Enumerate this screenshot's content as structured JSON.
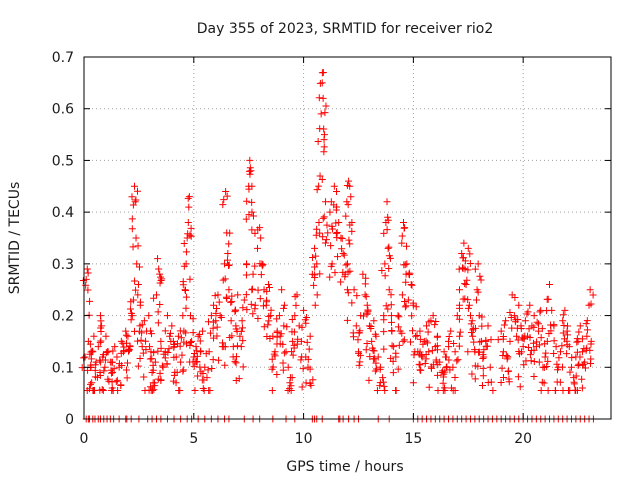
{
  "chart_data": {
    "type": "scatter",
    "title": "Day 355 of 2023, SRMTID for receiver rio2",
    "xlabel": "GPS time / hours",
    "ylabel": "SRMTID / TECUs",
    "xlim": [
      0,
      24
    ],
    "ylim": [
      0,
      0.7
    ],
    "xticks": [
      0,
      5,
      10,
      15,
      20
    ],
    "xtick_labels": [
      "0",
      "5",
      "10",
      "15",
      "20"
    ],
    "yticks": [
      0,
      0.1,
      0.2,
      0.3,
      0.4,
      0.5,
      0.6,
      0.7
    ],
    "ytick_labels": [
      "0",
      "0.1",
      "0.2",
      "0.3",
      "0.4",
      "0.5",
      "0.6",
      "0.7"
    ],
    "grid": true,
    "marker": "+",
    "marker_color": "#ff0000",
    "series": [
      {
        "name": "SRMTID",
        "points": [
          [
            0.05,
            0.12
          ],
          [
            0.1,
            0.27
          ],
          [
            0.15,
            0.29
          ],
          [
            0.2,
            0.15
          ],
          [
            0.3,
            0.1
          ],
          [
            0.35,
            0.07
          ],
          [
            0.4,
            0.13
          ],
          [
            0.45,
            0.16
          ],
          [
            0.55,
            0.11
          ],
          [
            0.65,
            0.14
          ],
          [
            0.75,
            0.2
          ],
          [
            0.8,
            0.18
          ],
          [
            0.85,
            0.12
          ],
          [
            0.95,
            0.1
          ],
          [
            1.0,
            0.16
          ],
          [
            1.1,
            0.13
          ],
          [
            1.2,
            0.11
          ],
          [
            1.3,
            0.09
          ],
          [
            1.4,
            0.14
          ],
          [
            1.5,
            0.12
          ],
          [
            1.6,
            0.1
          ],
          [
            1.7,
            0.15
          ],
          [
            1.8,
            0.13
          ],
          [
            1.9,
            0.17
          ],
          [
            2.0,
            0.16
          ],
          [
            2.1,
            0.14
          ],
          [
            2.2,
            0.2
          ],
          [
            2.25,
            0.23
          ],
          [
            2.3,
            0.45
          ],
          [
            2.33,
            0.42
          ],
          [
            2.37,
            0.35
          ],
          [
            2.4,
            0.3
          ],
          [
            2.45,
            0.24
          ],
          [
            2.55,
            0.18
          ],
          [
            2.65,
            0.14
          ],
          [
            2.75,
            0.19
          ],
          [
            2.85,
            0.17
          ],
          [
            2.95,
            0.2
          ],
          [
            3.05,
            0.13
          ],
          [
            3.1,
            0.09
          ],
          [
            3.15,
            0.07
          ],
          [
            3.25,
            0.11
          ],
          [
            3.3,
            0.24
          ],
          [
            3.35,
            0.31
          ],
          [
            3.4,
            0.29
          ],
          [
            3.5,
            0.15
          ],
          [
            3.6,
            0.1
          ],
          [
            3.7,
            0.13
          ],
          [
            3.8,
            0.2
          ],
          [
            3.9,
            0.16
          ],
          [
            4.0,
            0.18
          ],
          [
            4.1,
            0.14
          ],
          [
            4.2,
            0.12
          ],
          [
            4.3,
            0.16
          ],
          [
            4.4,
            0.11
          ],
          [
            4.5,
            0.2
          ],
          [
            4.55,
            0.17
          ],
          [
            4.6,
            0.25
          ],
          [
            4.65,
            0.3
          ],
          [
            4.7,
            0.35
          ],
          [
            4.75,
            0.38
          ],
          [
            4.8,
            0.43
          ],
          [
            4.85,
            0.2
          ],
          [
            4.9,
            0.15
          ],
          [
            5.0,
            0.12
          ],
          [
            5.1,
            0.14
          ],
          [
            5.2,
            0.16
          ],
          [
            5.3,
            0.13
          ],
          [
            5.4,
            0.17
          ],
          [
            5.5,
            0.1
          ],
          [
            5.6,
            0.08
          ],
          [
            5.7,
            0.13
          ],
          [
            5.8,
            0.2
          ],
          [
            5.9,
            0.22
          ],
          [
            6.0,
            0.19
          ],
          [
            6.1,
            0.24
          ],
          [
            6.2,
            0.2
          ],
          [
            6.3,
            0.14
          ],
          [
            6.4,
            0.3
          ],
          [
            6.45,
            0.44
          ],
          [
            6.5,
            0.36
          ],
          [
            6.55,
            0.32
          ],
          [
            6.6,
            0.25
          ],
          [
            6.7,
            0.19
          ],
          [
            6.8,
            0.14
          ],
          [
            6.9,
            0.21
          ],
          [
            7.0,
            0.24
          ],
          [
            7.1,
            0.16
          ],
          [
            7.2,
            0.19
          ],
          [
            7.3,
            0.23
          ],
          [
            7.4,
            0.3
          ],
          [
            7.5,
            0.45
          ],
          [
            7.55,
            0.5
          ],
          [
            7.6,
            0.48
          ],
          [
            7.65,
            0.4
          ],
          [
            7.7,
            0.28
          ],
          [
            7.8,
            0.22
          ],
          [
            7.9,
            0.33
          ],
          [
            8.0,
            0.37
          ],
          [
            8.1,
            0.3
          ],
          [
            8.2,
            0.25
          ],
          [
            8.3,
            0.22
          ],
          [
            8.4,
            0.26
          ],
          [
            8.5,
            0.2
          ],
          [
            8.6,
            0.16
          ],
          [
            8.7,
            0.13
          ],
          [
            8.8,
            0.17
          ],
          [
            8.9,
            0.2
          ],
          [
            9.0,
            0.25
          ],
          [
            9.1,
            0.18
          ],
          [
            9.2,
            0.13
          ],
          [
            9.3,
            0.1
          ],
          [
            9.4,
            0.08
          ],
          [
            9.5,
            0.15
          ],
          [
            9.6,
            0.2
          ],
          [
            9.7,
            0.24
          ],
          [
            9.8,
            0.18
          ],
          [
            9.9,
            0.15
          ],
          [
            10.0,
            0.21
          ],
          [
            10.1,
            0.12
          ],
          [
            10.2,
            0.1
          ],
          [
            10.3,
            0.16
          ],
          [
            10.4,
            0.28
          ],
          [
            10.5,
            0.33
          ],
          [
            10.6,
            0.3
          ],
          [
            10.7,
            0.38
          ],
          [
            10.75,
            0.47
          ],
          [
            10.8,
            0.59
          ],
          [
            10.85,
            0.65
          ],
          [
            10.9,
            0.67
          ],
          [
            10.95,
            0.55
          ],
          [
            11.0,
            0.42
          ],
          [
            11.1,
            0.36
          ],
          [
            11.2,
            0.4
          ],
          [
            11.3,
            0.3
          ],
          [
            11.4,
            0.45
          ],
          [
            11.5,
            0.44
          ],
          [
            11.6,
            0.38
          ],
          [
            11.7,
            0.35
          ],
          [
            11.8,
            0.32
          ],
          [
            11.9,
            0.28
          ],
          [
            12.0,
            0.3
          ],
          [
            12.05,
            0.46
          ],
          [
            12.1,
            0.45
          ],
          [
            12.2,
            0.38
          ],
          [
            12.3,
            0.25
          ],
          [
            12.4,
            0.18
          ],
          [
            12.5,
            0.13
          ],
          [
            12.6,
            0.2
          ],
          [
            12.7,
            0.28
          ],
          [
            12.8,
            0.24
          ],
          [
            12.9,
            0.22
          ],
          [
            13.0,
            0.18
          ],
          [
            13.1,
            0.15
          ],
          [
            13.2,
            0.19
          ],
          [
            13.3,
            0.16
          ],
          [
            13.4,
            0.12
          ],
          [
            13.5,
            0.1
          ],
          [
            13.6,
            0.08
          ],
          [
            13.65,
            0.2
          ],
          [
            13.7,
            0.3
          ],
          [
            13.75,
            0.38
          ],
          [
            13.8,
            0.42
          ],
          [
            13.85,
            0.33
          ],
          [
            13.9,
            0.25
          ],
          [
            14.0,
            0.2
          ],
          [
            14.1,
            0.14
          ],
          [
            14.2,
            0.12
          ],
          [
            14.3,
            0.2
          ],
          [
            14.4,
            0.17
          ],
          [
            14.5,
            0.24
          ],
          [
            14.55,
            0.38
          ],
          [
            14.6,
            0.37
          ],
          [
            14.7,
            0.3
          ],
          [
            14.8,
            0.28
          ],
          [
            14.9,
            0.26
          ],
          [
            15.0,
            0.22
          ],
          [
            15.1,
            0.16
          ],
          [
            15.2,
            0.13
          ],
          [
            15.3,
            0.17
          ],
          [
            15.4,
            0.12
          ],
          [
            15.5,
            0.15
          ],
          [
            15.6,
            0.18
          ],
          [
            15.7,
            0.13
          ],
          [
            15.8,
            0.19
          ],
          [
            15.9,
            0.2
          ],
          [
            16.0,
            0.14
          ],
          [
            16.1,
            0.16
          ],
          [
            16.2,
            0.11
          ],
          [
            16.3,
            0.09
          ],
          [
            16.4,
            0.13
          ],
          [
            16.5,
            0.12
          ],
          [
            16.6,
            0.15
          ],
          [
            16.7,
            0.17
          ],
          [
            16.8,
            0.1
          ],
          [
            16.9,
            0.13
          ],
          [
            17.0,
            0.2
          ],
          [
            17.1,
            0.25
          ],
          [
            17.2,
            0.32
          ],
          [
            17.3,
            0.34
          ],
          [
            17.35,
            0.29
          ],
          [
            17.4,
            0.26
          ],
          [
            17.5,
            0.33
          ],
          [
            17.55,
            0.22
          ],
          [
            17.6,
            0.2
          ],
          [
            17.7,
            0.16
          ],
          [
            17.8,
            0.13
          ],
          [
            17.9,
            0.25
          ],
          [
            17.95,
            0.3
          ],
          [
            18.0,
            0.2
          ],
          [
            18.1,
            0.15
          ],
          [
            18.2,
            0.12
          ],
          [
            18.3,
            0.15
          ],
          [
            18.4,
            0.18
          ],
          [
            18.5,
            0.1
          ],
          [
            19.0,
            0.17
          ],
          [
            19.1,
            0.13
          ],
          [
            19.2,
            0.19
          ],
          [
            19.3,
            0.12
          ],
          [
            19.4,
            0.15
          ],
          [
            19.5,
            0.24
          ],
          [
            19.6,
            0.2
          ],
          [
            19.7,
            0.16
          ],
          [
            19.8,
            0.22
          ],
          [
            19.9,
            0.18
          ],
          [
            20.0,
            0.14
          ],
          [
            20.1,
            0.19
          ],
          [
            20.2,
            0.16
          ],
          [
            20.3,
            0.22
          ],
          [
            20.4,
            0.18
          ],
          [
            20.5,
            0.2
          ],
          [
            20.6,
            0.14
          ],
          [
            20.7,
            0.17
          ],
          [
            20.8,
            0.21
          ],
          [
            20.9,
            0.1
          ],
          [
            21.0,
            0.12
          ],
          [
            21.1,
            0.15
          ],
          [
            21.2,
            0.26
          ],
          [
            21.3,
            0.21
          ],
          [
            21.4,
            0.18
          ],
          [
            21.5,
            0.14
          ],
          [
            21.6,
            0.1
          ],
          [
            21.7,
            0.13
          ],
          [
            21.8,
            0.19
          ],
          [
            21.9,
            0.21
          ],
          [
            22.0,
            0.17
          ],
          [
            22.1,
            0.14
          ],
          [
            22.2,
            0.1
          ],
          [
            22.3,
            0.08
          ],
          [
            22.4,
            0.12
          ],
          [
            22.5,
            0.15
          ],
          [
            22.6,
            0.18
          ],
          [
            22.7,
            0.13
          ],
          [
            22.8,
            0.11
          ],
          [
            22.9,
            0.16
          ],
          [
            23.0,
            0.22
          ],
          [
            23.05,
            0.25
          ],
          [
            23.1,
            0.15
          ]
        ],
        "zero_points": [
          0.1,
          0.2,
          0.25,
          0.4,
          0.5,
          0.65,
          0.75,
          0.9,
          1.05,
          1.2,
          1.35,
          1.6,
          1.9,
          1.95,
          2.15,
          2.5,
          2.9,
          3.1,
          3.3,
          3.5,
          3.8,
          4.1,
          4.4,
          4.7,
          4.9,
          5.2,
          5.5,
          5.8,
          6.1,
          6.4,
          6.6,
          7.3,
          7.7,
          8.0,
          8.6,
          9.2,
          9.6,
          10.4,
          10.5,
          10.6,
          10.85,
          11.6,
          11.65,
          11.8,
          12.05,
          12.3,
          12.5,
          13.4,
          13.9,
          15.0,
          15.2,
          15.4,
          15.6,
          15.8,
          16.0,
          16.2,
          16.4,
          16.6,
          16.8,
          17.0,
          17.2,
          17.4,
          17.6,
          17.8,
          18.0,
          18.2,
          18.4,
          18.6,
          18.8,
          19.0,
          19.2,
          19.4,
          19.6,
          19.8,
          20.0,
          20.2,
          20.4,
          20.6,
          20.8,
          21.0,
          21.2,
          21.4,
          21.6,
          21.8,
          22.0,
          22.2,
          22.4,
          22.6,
          22.8,
          23.0,
          23.2
        ]
      }
    ]
  }
}
